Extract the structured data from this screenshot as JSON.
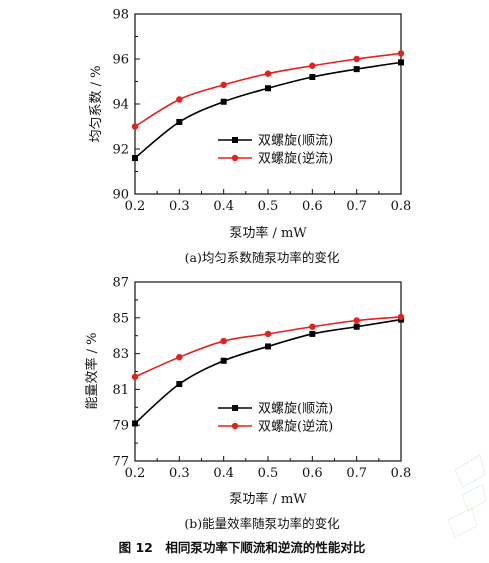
{
  "figure_caption": "图 12　相同泵功率下顺流和逆流的性能对比",
  "chart_data": [
    {
      "type": "line",
      "subcaption": "(a)均匀系数随泵功率的变化",
      "xlabel": "泵功率 / mW",
      "ylabel": "均匀系数 / %",
      "xlim": [
        0.2,
        0.8
      ],
      "ylim": [
        90,
        98
      ],
      "x_ticks": [
        "0.2",
        "0.3",
        "0.4",
        "0.5",
        "0.6",
        "0.7",
        "0.8"
      ],
      "y_ticks": [
        "90",
        "92",
        "94",
        "96",
        "98"
      ],
      "legend_position": "center-right",
      "x": [
        0.2,
        0.3,
        0.4,
        0.5,
        0.6,
        0.7,
        0.8
      ],
      "series": [
        {
          "name": "双螺旋(顺流)",
          "color": "#000000",
          "marker": "square",
          "values": [
            91.6,
            93.2,
            94.1,
            94.7,
            95.2,
            95.55,
            95.85
          ]
        },
        {
          "name": "双螺旋(逆流)",
          "color": "#e8201c",
          "marker": "circle",
          "values": [
            93.0,
            94.2,
            94.85,
            95.35,
            95.7,
            96.0,
            96.25
          ]
        }
      ]
    },
    {
      "type": "line",
      "subcaption": "(b)能量效率随泵功率的变化",
      "xlabel": "泵功率 / mW",
      "ylabel": "能量效率 / %",
      "xlim": [
        0.2,
        0.8
      ],
      "ylim": [
        77,
        87
      ],
      "x_ticks": [
        "0.2",
        "0.3",
        "0.4",
        "0.5",
        "0.6",
        "0.7",
        "0.8"
      ],
      "y_ticks": [
        "77",
        "79",
        "81",
        "83",
        "85",
        "87"
      ],
      "legend_position": "bottom-right",
      "x": [
        0.2,
        0.3,
        0.4,
        0.5,
        0.6,
        0.7,
        0.8
      ],
      "series": [
        {
          "name": "双螺旋(顺流)",
          "color": "#000000",
          "marker": "square",
          "values": [
            79.1,
            81.3,
            82.6,
            83.4,
            84.1,
            84.5,
            84.9
          ]
        },
        {
          "name": "双螺旋(逆流)",
          "color": "#e8201c",
          "marker": "circle",
          "values": [
            81.7,
            82.8,
            83.7,
            84.1,
            84.5,
            84.85,
            85.05
          ]
        }
      ]
    }
  ]
}
